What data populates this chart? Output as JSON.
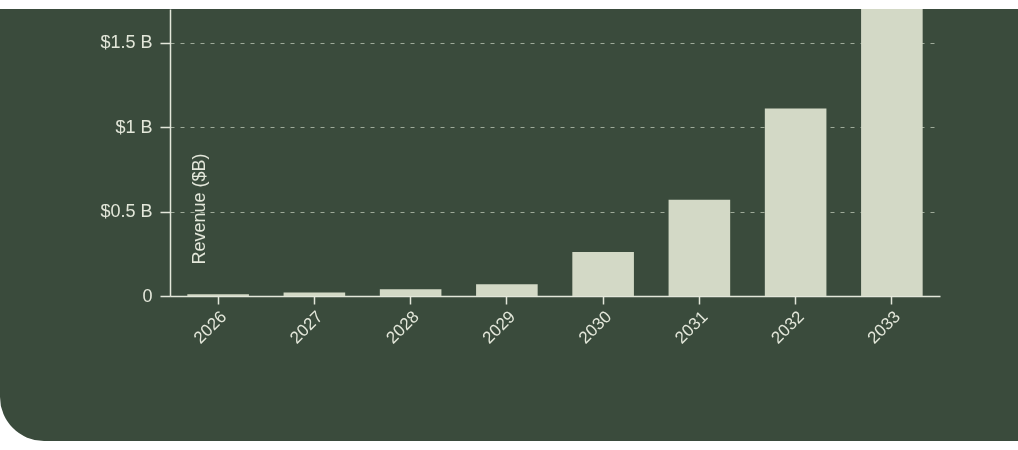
{
  "chart_data": {
    "type": "bar",
    "ylabel": "Revenue ($B)",
    "categories": [
      "2026",
      "2027",
      "2028",
      "2029",
      "2030",
      "2031",
      "2032",
      "2033"
    ],
    "values": [
      0.01,
      0.02,
      0.04,
      0.07,
      0.26,
      0.57,
      1.11,
      1.7
    ],
    "color": "#d3d9c6",
    "ylim": [
      0,
      1.7
    ],
    "yticks": [
      {
        "value": 0,
        "label": "0"
      },
      {
        "value": 0.5,
        "label": "$0.5 B"
      },
      {
        "value": 1,
        "label": "$1 B"
      },
      {
        "value": 1.5,
        "label": "$1.5 B"
      }
    ],
    "grid": "y"
  }
}
